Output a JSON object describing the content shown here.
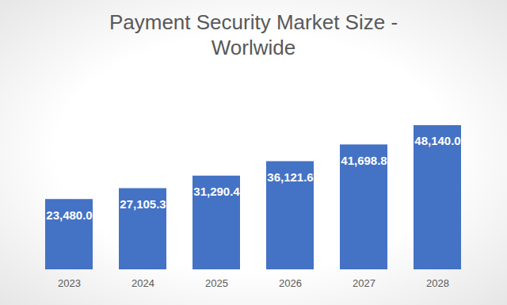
{
  "chart_data": {
    "type": "bar",
    "title": "Payment Security Market Size - Worlwide",
    "categories": [
      "2023",
      "2024",
      "2025",
      "2026",
      "2027",
      "2028"
    ],
    "values": [
      23480.0,
      27105.3,
      31290.4,
      36121.6,
      41698.8,
      48140.0
    ],
    "value_labels": [
      "23,480.0",
      "27,105.3",
      "31,290.4",
      "36,121.6",
      "41,698.8",
      "48,140.0"
    ],
    "color": "#4472c4",
    "ylim": [
      0,
      48140
    ],
    "grid": false,
    "data_labels": true,
    "tick_labels": "x"
  }
}
